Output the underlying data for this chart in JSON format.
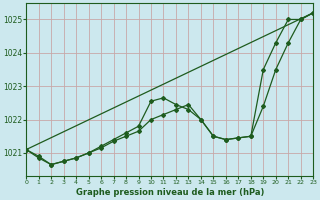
{
  "xlabel": "Graphe pression niveau de la mer (hPa)",
  "bg_color": "#cce8ee",
  "grid_color": "#c8a8a8",
  "line_color": "#1e5c1e",
  "ylim": [
    1020.3,
    1025.5
  ],
  "xlim": [
    0,
    23
  ],
  "yticks": [
    1021,
    1022,
    1023,
    1024,
    1025
  ],
  "xticks": [
    0,
    1,
    2,
    3,
    4,
    5,
    6,
    7,
    8,
    9,
    10,
    11,
    12,
    13,
    14,
    15,
    16,
    17,
    18,
    19,
    20,
    21,
    22,
    23
  ],
  "series1_x": [
    0,
    1,
    2,
    3,
    4,
    5,
    6,
    7,
    8,
    9,
    10,
    11,
    12,
    13,
    14,
    15,
    16,
    17,
    18,
    19,
    20,
    21,
    22,
    23
  ],
  "series1_y": [
    1021.1,
    1020.85,
    1020.65,
    1020.75,
    1020.85,
    1021.0,
    1021.15,
    1021.35,
    1021.5,
    1021.65,
    1022.0,
    1022.15,
    1022.3,
    1022.45,
    1022.0,
    1021.5,
    1021.4,
    1021.45,
    1021.5,
    1022.4,
    1023.5,
    1024.3,
    1025.0,
    1025.2
  ],
  "series2_x": [
    0,
    1,
    2,
    3,
    4,
    5,
    6,
    7,
    8,
    9,
    10,
    11,
    12,
    13,
    14,
    15,
    16,
    17,
    18,
    19,
    20,
    21,
    22,
    23
  ],
  "series2_y": [
    1021.1,
    1020.9,
    1020.65,
    1020.75,
    1020.85,
    1021.0,
    1021.2,
    1021.4,
    1021.6,
    1021.8,
    1022.55,
    1022.65,
    1022.45,
    1022.3,
    1022.0,
    1021.5,
    1021.4,
    1021.45,
    1021.5,
    1023.5,
    1024.3,
    1025.0,
    1025.0,
    1025.2
  ],
  "series3_x": [
    0,
    23
  ],
  "series3_y": [
    1021.1,
    1025.2
  ]
}
